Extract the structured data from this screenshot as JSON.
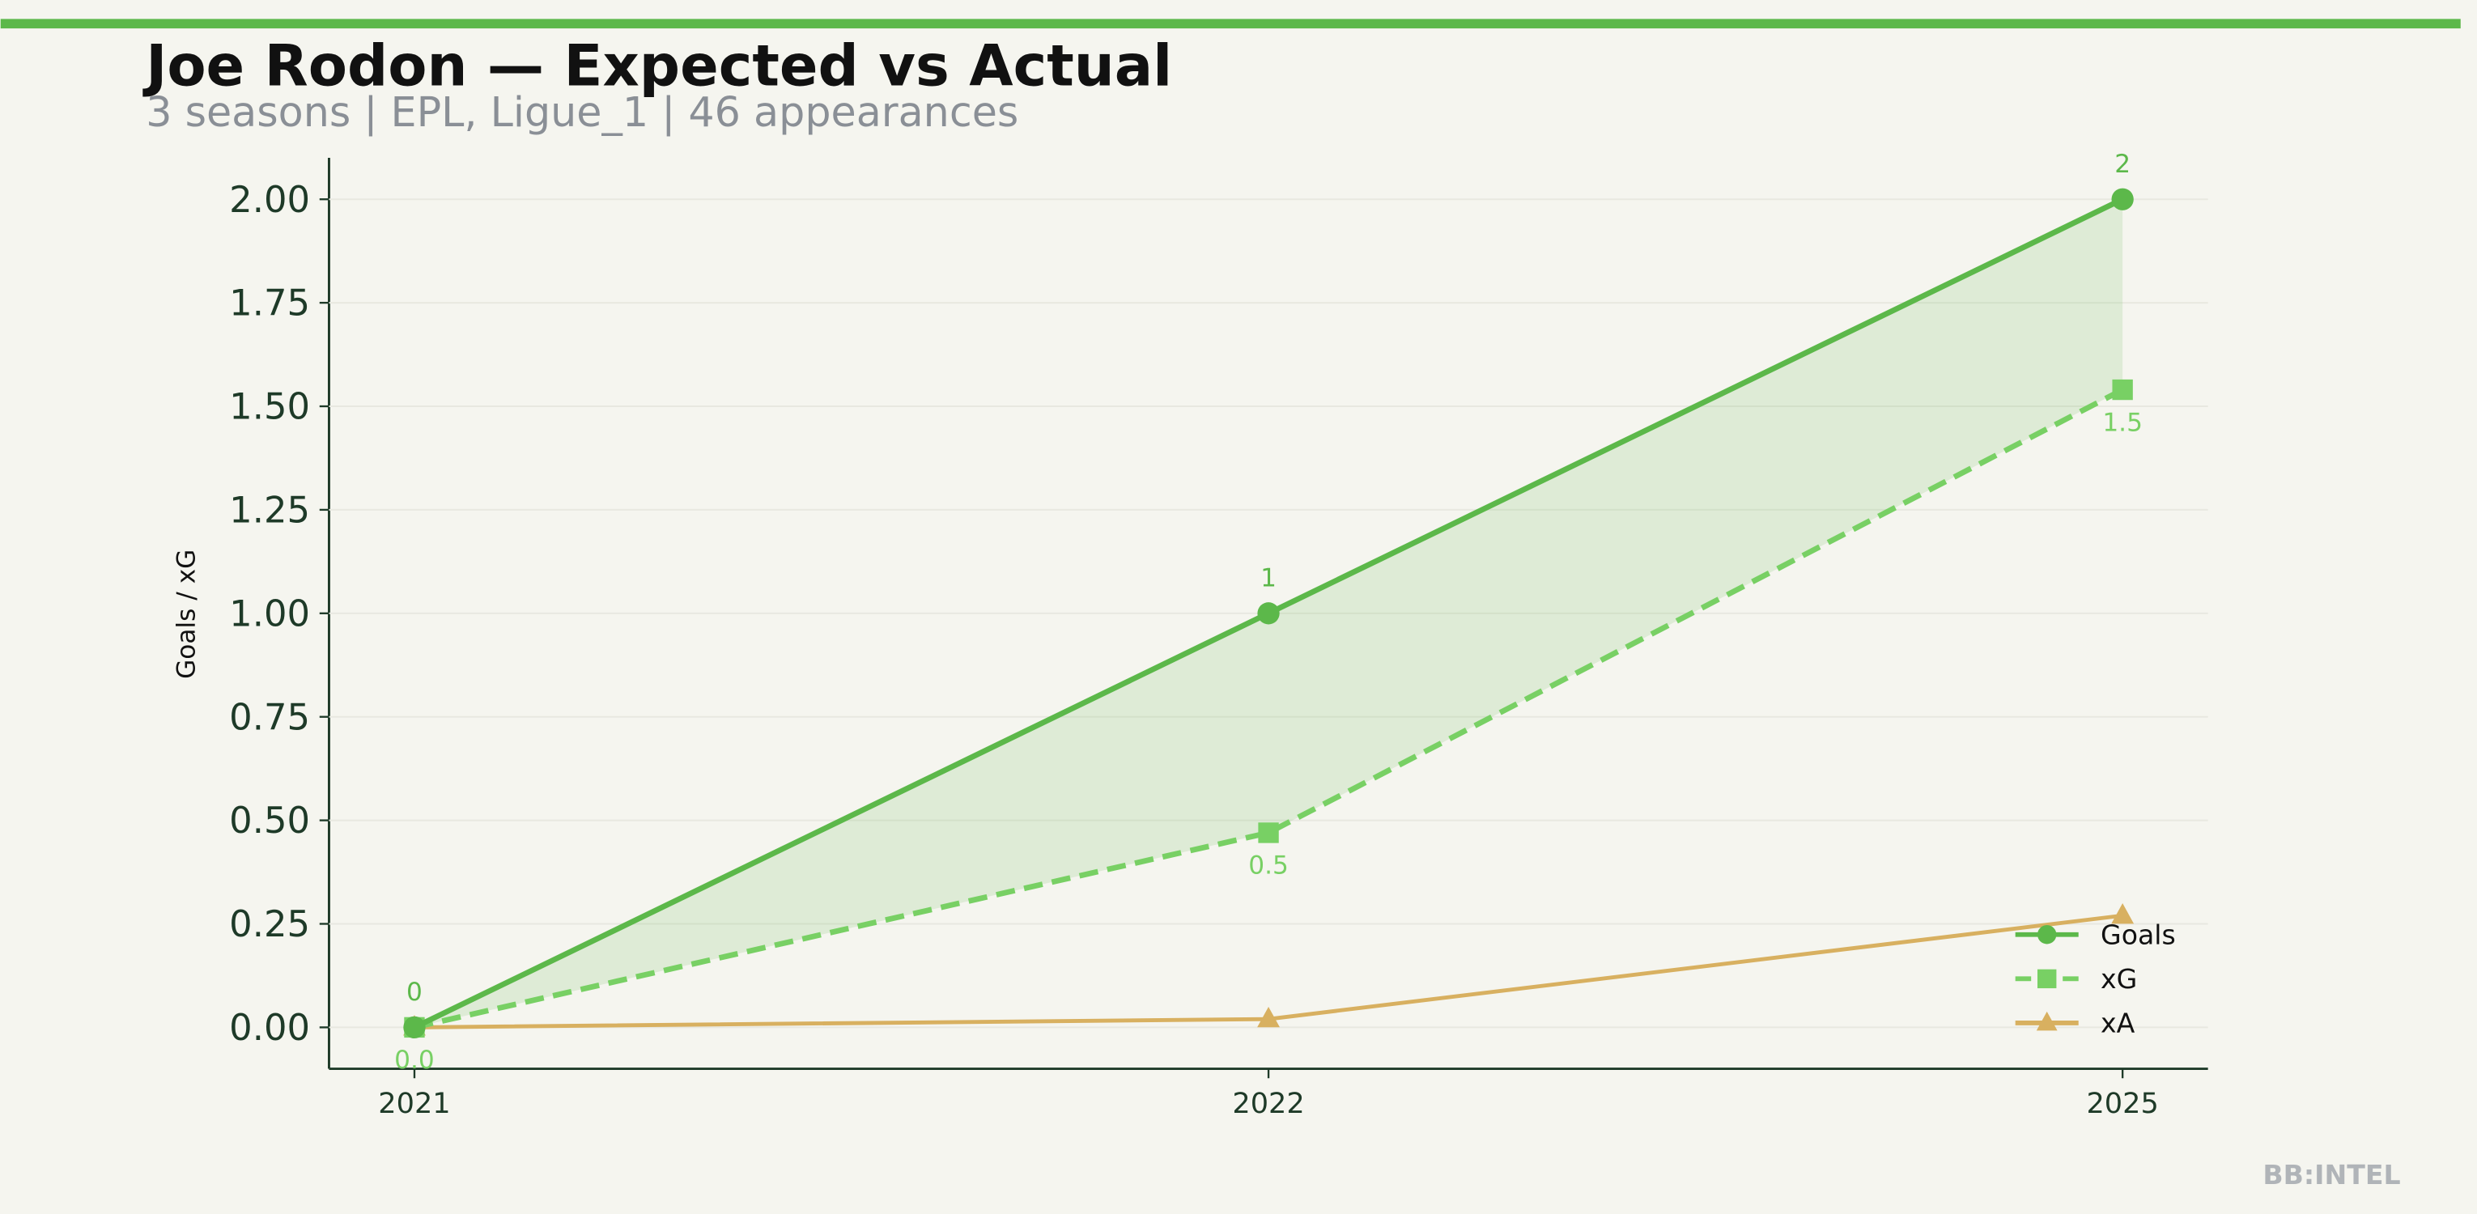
{
  "chart_data": {
    "type": "line",
    "title": "Joe Rodon — Expected vs Actual",
    "subtitle": "3 seasons | EPL, Ligue_1 | 46 appearances",
    "y_label": "Goals / xG",
    "watermark": "BB:INTEL",
    "categories": [
      "2021",
      "2022",
      "2025"
    ],
    "series": [
      {
        "name": "Goals",
        "color": "#5cb84a",
        "marker": "circle",
        "dash": false,
        "values": [
          0,
          1,
          2
        ]
      },
      {
        "name": "xG",
        "color": "#78d064",
        "marker": "square",
        "dash": true,
        "values": [
          0,
          0.47,
          1.54
        ],
        "value_labels": [
          "0.0",
          "0.5",
          "1.5"
        ]
      },
      {
        "name": "xA",
        "color": "#d8b060",
        "marker": "triangle",
        "dash": false,
        "values": [
          0,
          0.02,
          0.27
        ]
      }
    ],
    "ylim": [
      -0.1,
      2.1
    ],
    "yticks": [
      {
        "value": 0,
        "label": "0.00"
      },
      {
        "value": 0.25,
        "label": "0.25"
      },
      {
        "value": 0.5,
        "label": "0.50"
      },
      {
        "value": 0.75,
        "label": "0.75"
      },
      {
        "value": 1,
        "label": "1.00"
      },
      {
        "value": 1.25,
        "label": "1.25"
      },
      {
        "value": 1.5,
        "label": "1.50"
      },
      {
        "value": 1.75,
        "label": "1.75"
      },
      {
        "value": 2,
        "label": "2.00"
      }
    ],
    "grid": true,
    "legend": "lower right"
  }
}
